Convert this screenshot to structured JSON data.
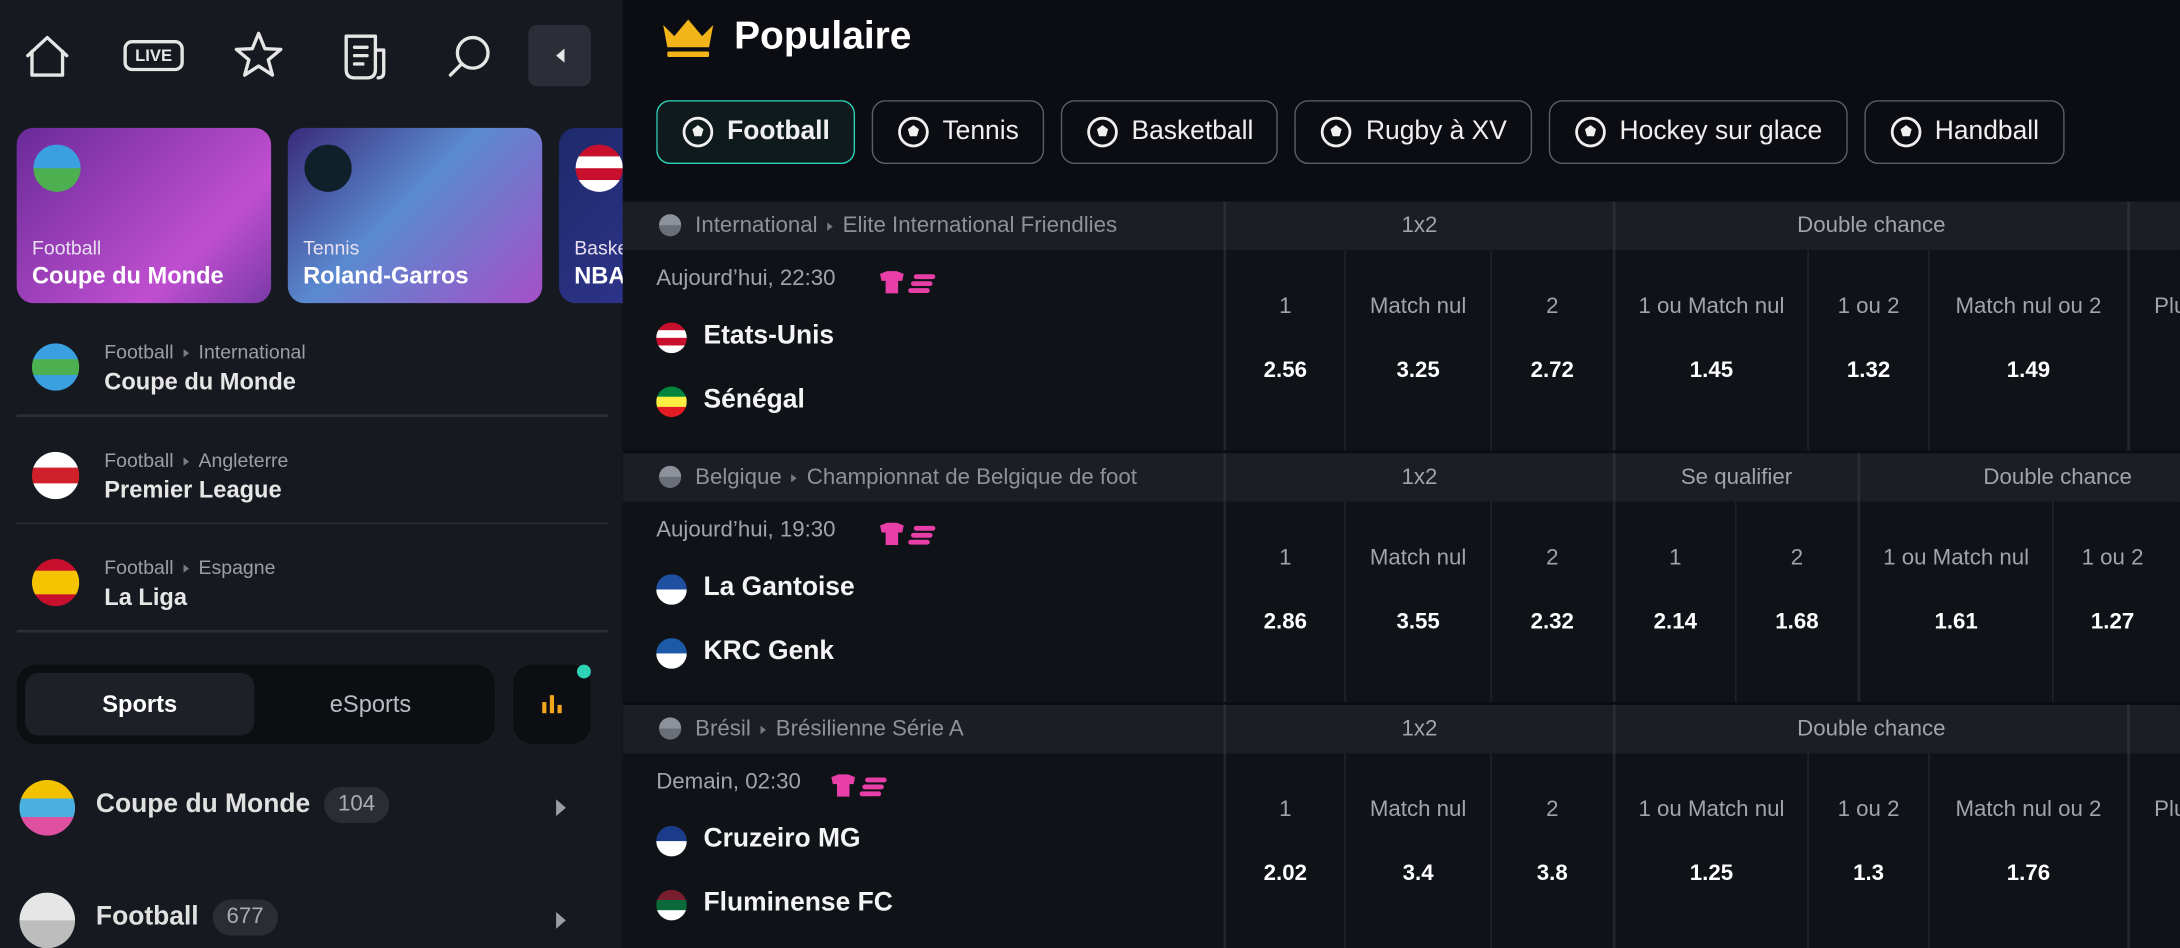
{
  "nav": {
    "live": "LIVE"
  },
  "featured": [
    {
      "sport": "Football",
      "title": "Coupe du Monde"
    },
    {
      "sport": "Tennis",
      "title": "Roland-Garros"
    },
    {
      "sport": "Basketball",
      "title": "NBA"
    }
  ],
  "leagues": [
    {
      "path": [
        "Football",
        "International"
      ],
      "name": "Coupe du Monde"
    },
    {
      "path": [
        "Football",
        "Angleterre"
      ],
      "name": "Premier League"
    },
    {
      "path": [
        "Football",
        "Espagne"
      ],
      "name": "La Liga"
    }
  ],
  "toggle": [
    "Sports",
    "eSports"
  ],
  "sports": [
    {
      "name": "Coupe du Monde",
      "count": 104
    },
    {
      "name": "Football",
      "count": 677
    }
  ],
  "main": {
    "title": "Populaire",
    "tabs": [
      "Football",
      "Tennis",
      "Basketball",
      "Rugby à XV",
      "Hockey sur glace",
      "Handball"
    ],
    "matches": [
      {
        "league": [
          "International",
          "Elite International Friendlies"
        ],
        "time": "Aujourd’hui, 22:30",
        "teams": [
          "Etats-Unis",
          "Sénégal"
        ],
        "markets": [
          {
            "name": "1x2",
            "outcomes": [
              {
                "label": "1",
                "odd": "2.56"
              },
              {
                "label": "Match nul",
                "odd": "3.25"
              },
              {
                "label": "2",
                "odd": "2.72"
              }
            ]
          },
          {
            "name": "Double chance",
            "outcomes": [
              {
                "label": "1 ou Match nul",
                "odd": "1.45"
              },
              {
                "label": "1 ou 2",
                "odd": "1.32"
              },
              {
                "label": "Match nul ou 2",
                "odd": "1.49"
              }
            ]
          },
          {
            "outcomes": [
              {
                "label": "Plu"
              }
            ]
          }
        ]
      },
      {
        "league": [
          "Belgique",
          "Championnat de Belgique de foot"
        ],
        "time": "Aujourd’hui, 19:30",
        "teams": [
          "La Gantoise",
          "KRC Genk"
        ],
        "markets": [
          {
            "name": "1x2",
            "outcomes": [
              {
                "label": "1",
                "odd": "2.86"
              },
              {
                "label": "Match nul",
                "odd": "3.55"
              },
              {
                "label": "2",
                "odd": "2.32"
              }
            ]
          },
          {
            "name": "Se qualifier",
            "outcomes": [
              {
                "label": "1",
                "odd": "2.14"
              },
              {
                "label": "2",
                "odd": "1.68"
              }
            ]
          },
          {
            "name": "Double chance",
            "outcomes": [
              {
                "label": "1 ou Match nul",
                "odd": "1.61"
              },
              {
                "label": "1 ou 2",
                "odd": "1.27"
              }
            ]
          }
        ]
      },
      {
        "league": [
          "Brésil",
          "Brésilienne Série A"
        ],
        "time": "Demain, 02:30",
        "teams": [
          "Cruzeiro MG",
          "Fluminense FC"
        ],
        "markets": [
          {
            "name": "1x2",
            "outcomes": [
              {
                "label": "1",
                "odd": "2.02"
              },
              {
                "label": "Match nul",
                "odd": "3.4"
              },
              {
                "label": "2",
                "odd": "3.8"
              }
            ]
          },
          {
            "name": "Double chance",
            "outcomes": [
              {
                "label": "1 ou Match nul",
                "odd": "1.25"
              },
              {
                "label": "1 ou 2",
                "odd": "1.3"
              },
              {
                "label": "Match nul ou 2",
                "odd": "1.76"
              }
            ]
          },
          {
            "outcomes": [
              {
                "label": "Plu"
              }
            ]
          }
        ]
      }
    ]
  }
}
